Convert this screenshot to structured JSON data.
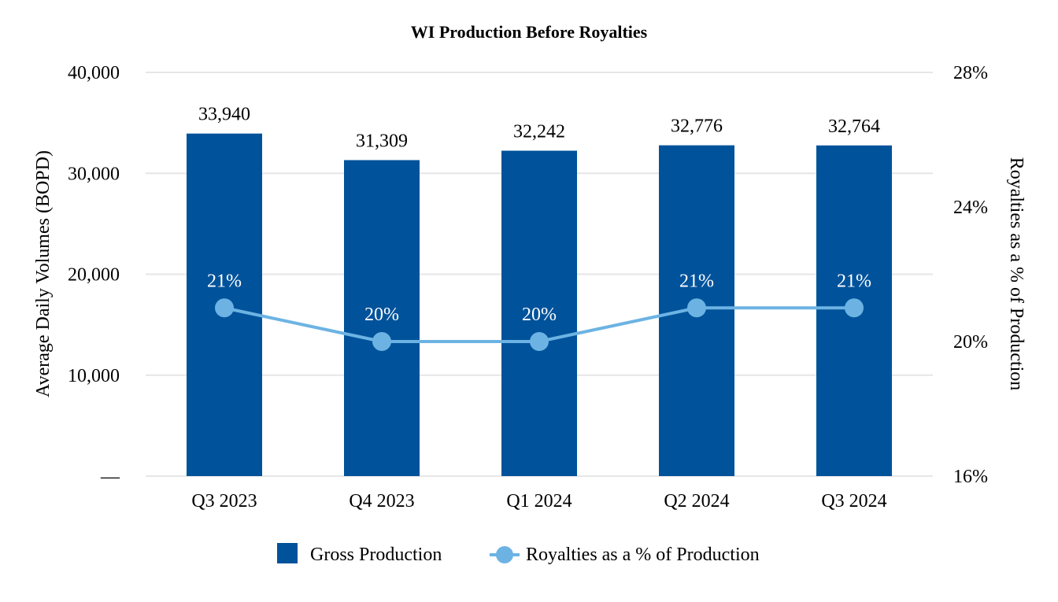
{
  "chart_data": {
    "type": "bar",
    "title": "WI Production Before Royalties",
    "categories": [
      "Q3 2023",
      "Q4 2023",
      "Q1 2024",
      "Q2 2024",
      "Q3 2024"
    ],
    "series": [
      {
        "name": "Gross Production",
        "type": "bar",
        "axis": "left",
        "values": [
          33940,
          31309,
          32242,
          32776,
          32764
        ],
        "labels": [
          "33,940",
          "31,309",
          "32,242",
          "32,776",
          "32,764"
        ],
        "color": "#00529b"
      },
      {
        "name": "Royalties as a % of Production",
        "type": "line",
        "axis": "right",
        "values": [
          21,
          20,
          20,
          21,
          21
        ],
        "labels": [
          "21%",
          "20%",
          "20%",
          "21%",
          "21%"
        ],
        "color": "#6cb3e3"
      }
    ],
    "ylabel": "Average Daily Volumes (BOPD)",
    "y2label": "Royalties as a % of Production",
    "ylim": [
      0,
      40000
    ],
    "y2lim": [
      16,
      28
    ],
    "yticks": [
      "—",
      "10,000",
      "20,000",
      "30,000",
      "40,000"
    ],
    "y2ticks": [
      "16%",
      "20%",
      "24%",
      "28%"
    ],
    "grid": true,
    "legend_position": "bottom",
    "gridline_color": "#e6e6e6"
  }
}
